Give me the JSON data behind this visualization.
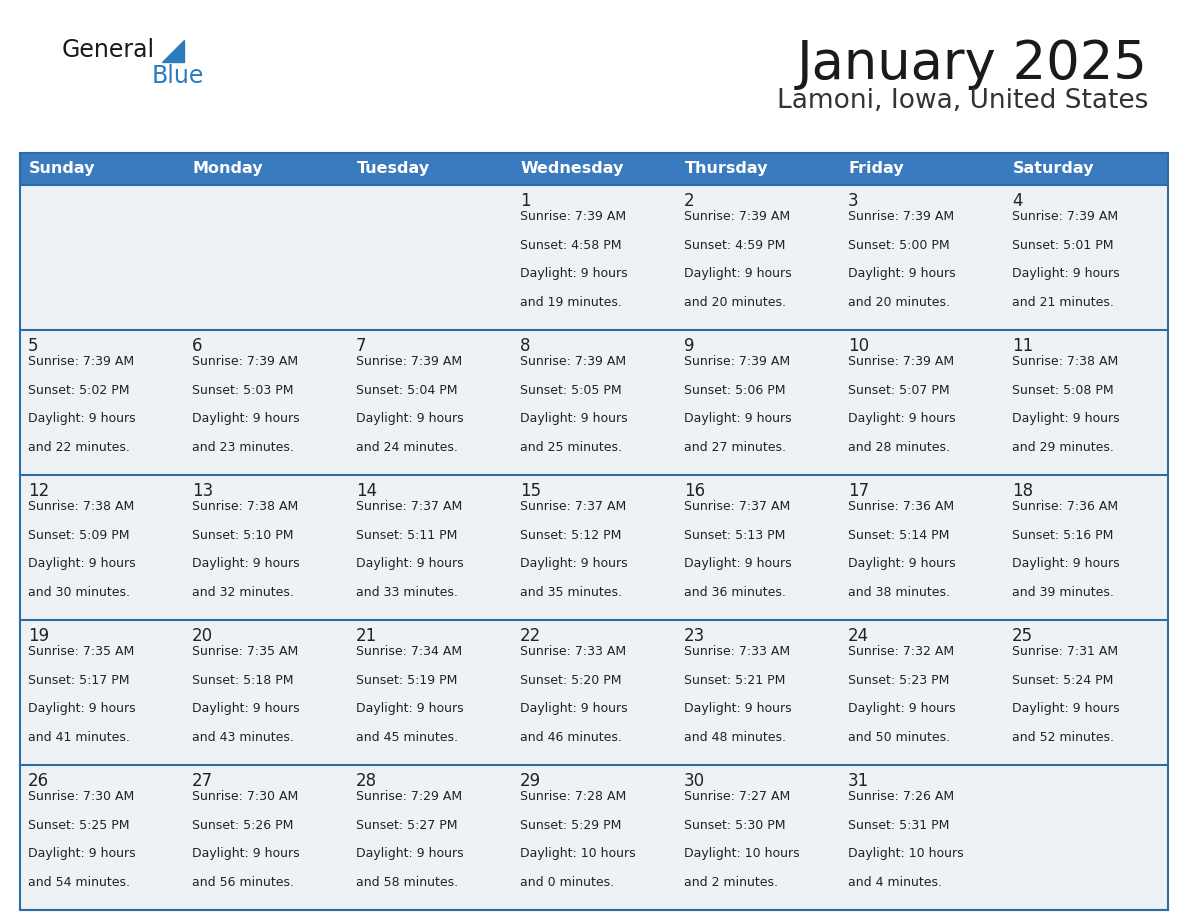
{
  "title": "January 2025",
  "subtitle": "Lamoni, Iowa, United States",
  "header_color": "#3a7abf",
  "header_text_color": "#ffffff",
  "cell_bg_color": "#eef2f7",
  "cell_bg_empty": "#f0f4f8",
  "border_color": "#2e6da4",
  "text_color": "#222222",
  "days_of_week": [
    "Sunday",
    "Monday",
    "Tuesday",
    "Wednesday",
    "Thursday",
    "Friday",
    "Saturday"
  ],
  "logo_color": "#2b7bbf",
  "calendar_data": [
    [
      {
        "day": 0
      },
      {
        "day": 0
      },
      {
        "day": 0
      },
      {
        "day": 1,
        "sunrise": "7:39 AM",
        "sunset": "4:58 PM",
        "daylight": "9 hours",
        "daylight2": "and 19 minutes."
      },
      {
        "day": 2,
        "sunrise": "7:39 AM",
        "sunset": "4:59 PM",
        "daylight": "9 hours",
        "daylight2": "and 20 minutes."
      },
      {
        "day": 3,
        "sunrise": "7:39 AM",
        "sunset": "5:00 PM",
        "daylight": "9 hours",
        "daylight2": "and 20 minutes."
      },
      {
        "day": 4,
        "sunrise": "7:39 AM",
        "sunset": "5:01 PM",
        "daylight": "9 hours",
        "daylight2": "and 21 minutes."
      }
    ],
    [
      {
        "day": 5,
        "sunrise": "7:39 AM",
        "sunset": "5:02 PM",
        "daylight": "9 hours",
        "daylight2": "and 22 minutes."
      },
      {
        "day": 6,
        "sunrise": "7:39 AM",
        "sunset": "5:03 PM",
        "daylight": "9 hours",
        "daylight2": "and 23 minutes."
      },
      {
        "day": 7,
        "sunrise": "7:39 AM",
        "sunset": "5:04 PM",
        "daylight": "9 hours",
        "daylight2": "and 24 minutes."
      },
      {
        "day": 8,
        "sunrise": "7:39 AM",
        "sunset": "5:05 PM",
        "daylight": "9 hours",
        "daylight2": "and 25 minutes."
      },
      {
        "day": 9,
        "sunrise": "7:39 AM",
        "sunset": "5:06 PM",
        "daylight": "9 hours",
        "daylight2": "and 27 minutes."
      },
      {
        "day": 10,
        "sunrise": "7:39 AM",
        "sunset": "5:07 PM",
        "daylight": "9 hours",
        "daylight2": "and 28 minutes."
      },
      {
        "day": 11,
        "sunrise": "7:38 AM",
        "sunset": "5:08 PM",
        "daylight": "9 hours",
        "daylight2": "and 29 minutes."
      }
    ],
    [
      {
        "day": 12,
        "sunrise": "7:38 AM",
        "sunset": "5:09 PM",
        "daylight": "9 hours",
        "daylight2": "and 30 minutes."
      },
      {
        "day": 13,
        "sunrise": "7:38 AM",
        "sunset": "5:10 PM",
        "daylight": "9 hours",
        "daylight2": "and 32 minutes."
      },
      {
        "day": 14,
        "sunrise": "7:37 AM",
        "sunset": "5:11 PM",
        "daylight": "9 hours",
        "daylight2": "and 33 minutes."
      },
      {
        "day": 15,
        "sunrise": "7:37 AM",
        "sunset": "5:12 PM",
        "daylight": "9 hours",
        "daylight2": "and 35 minutes."
      },
      {
        "day": 16,
        "sunrise": "7:37 AM",
        "sunset": "5:13 PM",
        "daylight": "9 hours",
        "daylight2": "and 36 minutes."
      },
      {
        "day": 17,
        "sunrise": "7:36 AM",
        "sunset": "5:14 PM",
        "daylight": "9 hours",
        "daylight2": "and 38 minutes."
      },
      {
        "day": 18,
        "sunrise": "7:36 AM",
        "sunset": "5:16 PM",
        "daylight": "9 hours",
        "daylight2": "and 39 minutes."
      }
    ],
    [
      {
        "day": 19,
        "sunrise": "7:35 AM",
        "sunset": "5:17 PM",
        "daylight": "9 hours",
        "daylight2": "and 41 minutes."
      },
      {
        "day": 20,
        "sunrise": "7:35 AM",
        "sunset": "5:18 PM",
        "daylight": "9 hours",
        "daylight2": "and 43 minutes."
      },
      {
        "day": 21,
        "sunrise": "7:34 AM",
        "sunset": "5:19 PM",
        "daylight": "9 hours",
        "daylight2": "and 45 minutes."
      },
      {
        "day": 22,
        "sunrise": "7:33 AM",
        "sunset": "5:20 PM",
        "daylight": "9 hours",
        "daylight2": "and 46 minutes."
      },
      {
        "day": 23,
        "sunrise": "7:33 AM",
        "sunset": "5:21 PM",
        "daylight": "9 hours",
        "daylight2": "and 48 minutes."
      },
      {
        "day": 24,
        "sunrise": "7:32 AM",
        "sunset": "5:23 PM",
        "daylight": "9 hours",
        "daylight2": "and 50 minutes."
      },
      {
        "day": 25,
        "sunrise": "7:31 AM",
        "sunset": "5:24 PM",
        "daylight": "9 hours",
        "daylight2": "and 52 minutes."
      }
    ],
    [
      {
        "day": 26,
        "sunrise": "7:30 AM",
        "sunset": "5:25 PM",
        "daylight": "9 hours",
        "daylight2": "and 54 minutes."
      },
      {
        "day": 27,
        "sunrise": "7:30 AM",
        "sunset": "5:26 PM",
        "daylight": "9 hours",
        "daylight2": "and 56 minutes."
      },
      {
        "day": 28,
        "sunrise": "7:29 AM",
        "sunset": "5:27 PM",
        "daylight": "9 hours",
        "daylight2": "and 58 minutes."
      },
      {
        "day": 29,
        "sunrise": "7:28 AM",
        "sunset": "5:29 PM",
        "daylight": "10 hours",
        "daylight2": "and 0 minutes."
      },
      {
        "day": 30,
        "sunrise": "7:27 AM",
        "sunset": "5:30 PM",
        "daylight": "10 hours",
        "daylight2": "and 2 minutes."
      },
      {
        "day": 31,
        "sunrise": "7:26 AM",
        "sunset": "5:31 PM",
        "daylight": "10 hours",
        "daylight2": "and 4 minutes."
      },
      {
        "day": 0
      }
    ]
  ]
}
